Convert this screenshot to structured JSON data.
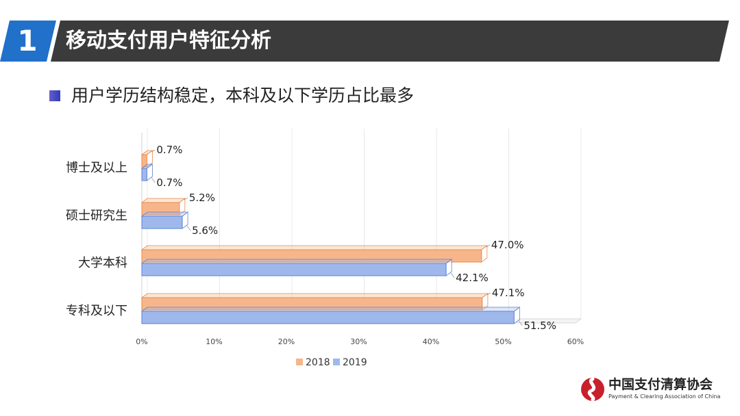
{
  "header": {
    "number": "1",
    "title": "移动支付用户特征分析"
  },
  "subtitle": "用户学历结构稳定，本科及以下学历占比最多",
  "colors": {
    "header_blue": "#2170c9",
    "header_dark": "#3b3b3b",
    "series_2018": "#f7b68a",
    "series_2018_edge": "#e8894a",
    "series_2019": "#9fb8ec",
    "series_2019_edge": "#5b7fd6"
  },
  "chart_data": {
    "type": "bar",
    "orientation": "horizontal",
    "style": "3d",
    "title": "",
    "categories": [
      "博士及以上",
      "硕士研究生",
      "大学本科",
      "专科及以下"
    ],
    "series": [
      {
        "name": "2018",
        "values": [
          0.7,
          5.2,
          47.0,
          47.1
        ],
        "labels": [
          "0.7%",
          "5.2%",
          "47.0%",
          "47.1%"
        ]
      },
      {
        "name": "2019",
        "values": [
          0.7,
          5.6,
          42.1,
          51.5
        ],
        "labels": [
          "0.7%",
          "5.6%",
          "42.1%",
          "51.5%"
        ]
      }
    ],
    "xlim": [
      0,
      60
    ],
    "xticks": [
      0,
      10,
      20,
      30,
      40,
      50,
      60
    ],
    "xtick_labels": [
      "0%",
      "10%",
      "20%",
      "30%",
      "40%",
      "50%",
      "60%"
    ],
    "grid": true,
    "legend_position": "bottom"
  },
  "legend": {
    "items": [
      {
        "label": "2018"
      },
      {
        "label": "2019"
      }
    ]
  },
  "logo": {
    "name_cn": "中国支付清算协会",
    "name_en": "Payment & Clearing Association of China"
  }
}
